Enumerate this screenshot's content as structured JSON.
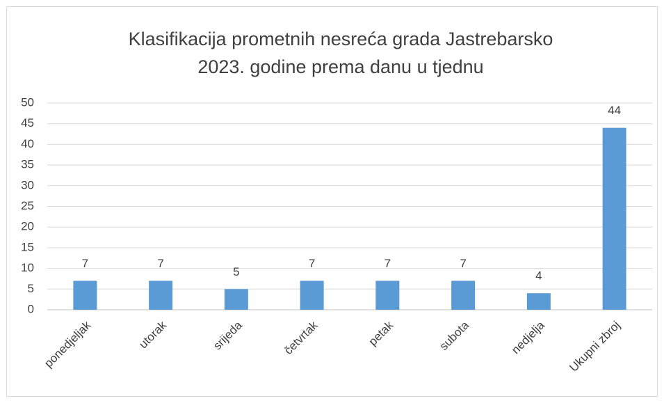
{
  "chart_data": {
    "type": "bar",
    "title": [
      "Klasifikacija prometnih nesreća grada Jastrebarsko",
      "2023. godine prema danu u tjednu"
    ],
    "categories": [
      "ponedjeljak",
      "utorak",
      "srijeda",
      "četvrtak",
      "petak",
      "subota",
      "nedjelja",
      "Ukupni zbroj"
    ],
    "values": [
      7,
      7,
      5,
      7,
      7,
      7,
      4,
      44
    ],
    "color": "#5b9bd5",
    "ylim": [
      0,
      50
    ],
    "yticks": [
      0,
      5,
      10,
      15,
      20,
      25,
      30,
      35,
      40,
      45,
      50
    ],
    "grid": true
  }
}
